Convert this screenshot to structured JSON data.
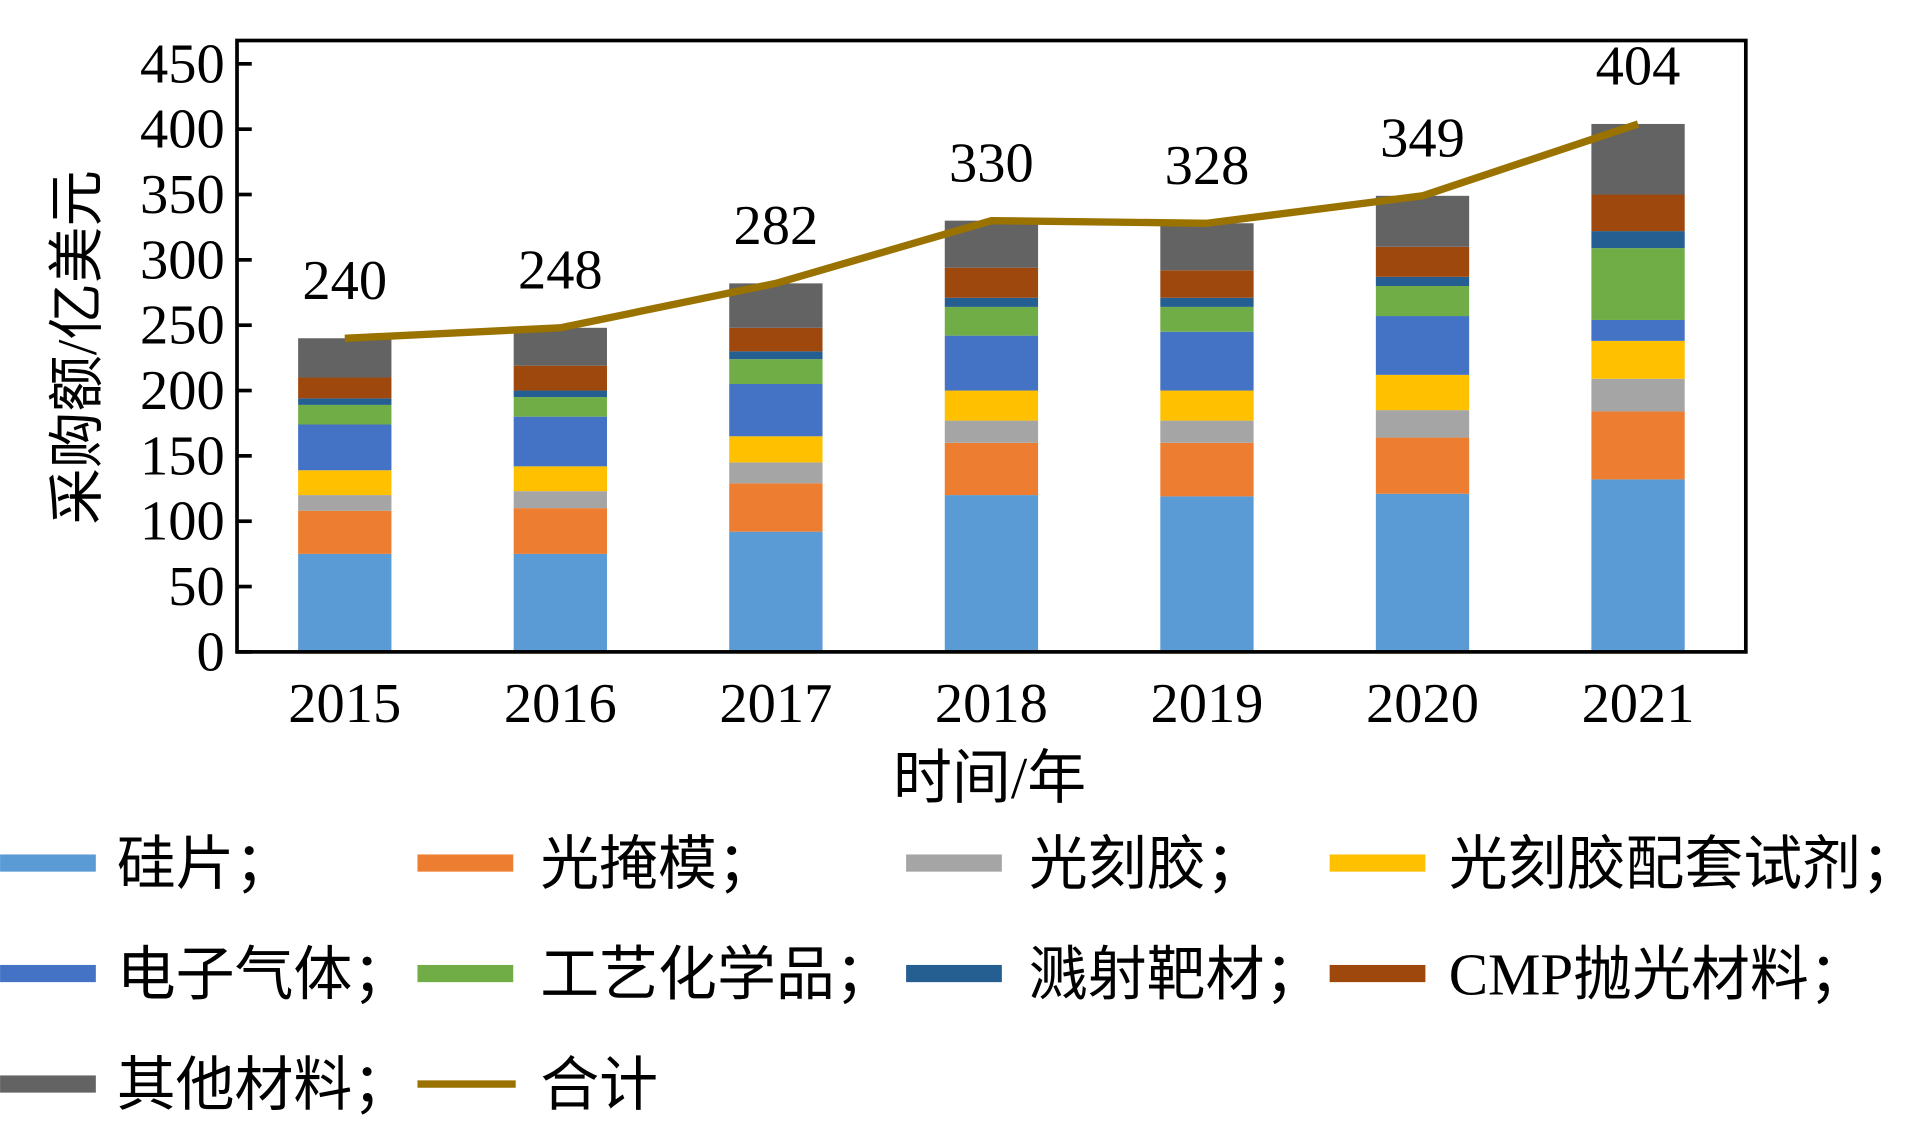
{
  "chart_data": {
    "type": "bar",
    "stacked": true,
    "xlabel": "时间/年",
    "ylabel": "采购额/亿美元",
    "ylim": [
      0,
      450
    ],
    "yticks": [
      0,
      50,
      100,
      150,
      200,
      250,
      300,
      350,
      400,
      450
    ],
    "grid": false,
    "legend_position": "bottom",
    "categories": [
      "2015",
      "2016",
      "2017",
      "2018",
      "2019",
      "2020",
      "2021"
    ],
    "series": [
      {
        "name": "硅片；",
        "color": "#5b9bd5",
        "values": [
          75,
          75,
          92,
          120,
          119,
          121,
          132
        ]
      },
      {
        "name": "光掩模；",
        "color": "#ed7d31",
        "values": [
          33,
          35,
          37,
          40,
          41,
          43,
          52
        ]
      },
      {
        "name": "光刻胶；",
        "color": "#a5a5a5",
        "values": [
          12,
          13,
          16,
          17,
          17,
          21,
          25
        ]
      },
      {
        "name": "光刻胶配套试剂；",
        "color": "#ffc000",
        "values": [
          19,
          19,
          20,
          23,
          23,
          27,
          29
        ]
      },
      {
        "name": "电子气体；",
        "color": "#4472c4",
        "values": [
          35,
          38,
          40,
          42,
          45,
          45,
          16
        ]
      },
      {
        "name": "工艺化学品；",
        "color": "#70ad47",
        "values": [
          15,
          15,
          19,
          22,
          19,
          23,
          55
        ]
      },
      {
        "name": "溅射靶材；",
        "color": "#255e91",
        "values": [
          5,
          5,
          6,
          7,
          7,
          7,
          13
        ]
      },
      {
        "name": "CMP抛光材料；",
        "color": "#9e480e",
        "values": [
          16,
          19,
          18,
          23,
          21,
          23,
          28
        ]
      },
      {
        "name": "其他材料；",
        "color": "#636363",
        "values": [
          30,
          29,
          34,
          36,
          36,
          39,
          54
        ]
      }
    ],
    "total": {
      "name": "合计",
      "type": "line",
      "color": "#9a7200",
      "values": [
        240,
        248,
        282,
        330,
        328,
        349,
        404
      ],
      "labels": [
        "240",
        "248",
        "282",
        "330",
        "328",
        "349",
        "404"
      ]
    }
  }
}
